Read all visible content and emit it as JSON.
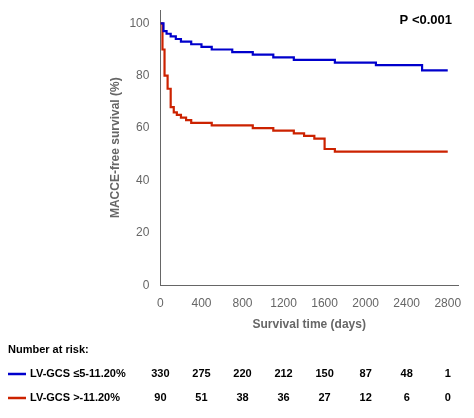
{
  "chart_data": {
    "type": "step",
    "xlabel": "Survival time (days)",
    "ylabel": "MACCE-free survival (%)",
    "xlim": [
      0,
      2900
    ],
    "ylim": [
      0,
      105
    ],
    "xticks": [
      0,
      400,
      800,
      1200,
      1600,
      2000,
      2400,
      2800
    ],
    "yticks": [
      0,
      20,
      40,
      60,
      80,
      100
    ],
    "grid": false,
    "annotation": "P <0.001",
    "at_risk_title": "Number at risk:",
    "at_risk_times": [
      0,
      400,
      800,
      1200,
      1600,
      2000,
      2400,
      2800
    ],
    "series": [
      {
        "name": "LV-GCS ≤5-11.20%",
        "color": "#0000CC",
        "x": [
          0,
          30,
          60,
          100,
          150,
          200,
          300,
          400,
          500,
          600,
          700,
          800,
          900,
          1000,
          1100,
          1200,
          1300,
          1400,
          1500,
          1600,
          1700,
          1800,
          1900,
          2000,
          2100,
          2200,
          2400,
          2550,
          2800
        ],
        "values": [
          100,
          97,
          96,
          95,
          94,
          93,
          92,
          91,
          90,
          90,
          89,
          89,
          88,
          88,
          87,
          87,
          86,
          86,
          86,
          86,
          85,
          85,
          85,
          85,
          84,
          84,
          84,
          82,
          82
        ],
        "at_risk": [
          330,
          275,
          220,
          212,
          150,
          87,
          48,
          1
        ]
      },
      {
        "name": "LV-GCS >-11.20%",
        "color": "#CC2200",
        "x": [
          0,
          20,
          40,
          70,
          100,
          130,
          160,
          200,
          250,
          300,
          400,
          500,
          600,
          700,
          800,
          900,
          1000,
          1100,
          1200,
          1300,
          1400,
          1500,
          1600,
          1700,
          1800,
          1900,
          2000,
          2100,
          2200,
          2400,
          2600,
          2800
        ],
        "values": [
          100,
          90,
          80,
          75,
          68,
          66,
          65,
          64,
          63,
          62,
          62,
          61,
          61,
          61,
          61,
          60,
          60,
          59,
          59,
          58,
          57,
          56,
          52,
          51,
          51,
          51,
          51,
          51,
          51,
          51,
          51,
          51
        ],
        "at_risk": [
          90,
          51,
          38,
          36,
          27,
          12,
          6,
          0
        ]
      }
    ]
  }
}
